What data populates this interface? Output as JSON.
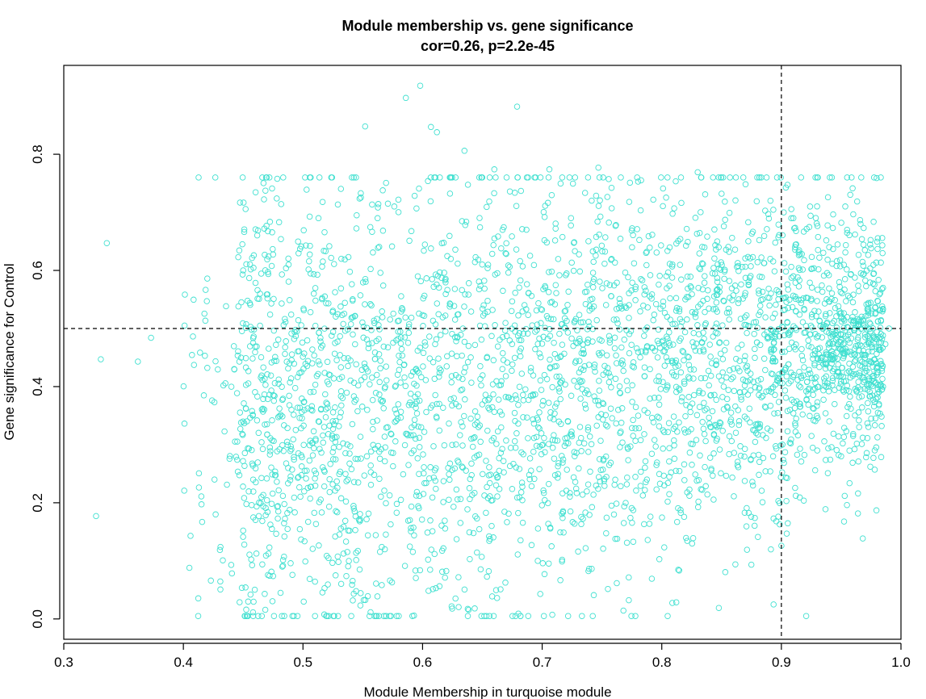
{
  "chart_data": {
    "type": "scatter",
    "title": "Module membership vs. gene significance",
    "subtitle": "cor=0.26, p=2.2e-45",
    "xlabel": "Module Membership in turquoise module",
    "ylabel": "Gene significance for Control",
    "xlim": [
      0.3,
      1.0
    ],
    "ylim": [
      -0.035,
      0.953
    ],
    "x_ticks": [
      "0.3",
      "0.4",
      "0.5",
      "0.6",
      "0.7",
      "0.8",
      "0.9",
      "1.0"
    ],
    "y_ticks": [
      "0.0",
      "0.2",
      "0.4",
      "0.6",
      "0.8"
    ],
    "grid": false,
    "legend": "none",
    "point_color": "#40E0D0",
    "point_shape": "open-circle",
    "reference_lines": {
      "vertical_x": 0.9,
      "horizontal_y": 0.5,
      "style": "dashed"
    },
    "n_points_approx": 3400,
    "highlighted_points": [
      [
        0.327,
        0.177
      ],
      [
        0.331,
        0.447
      ],
      [
        0.336,
        0.647
      ],
      [
        0.362,
        0.443
      ],
      [
        0.373,
        0.484
      ],
      [
        0.401,
        0.505
      ],
      [
        0.405,
        0.088
      ],
      [
        0.406,
        0.143
      ],
      [
        0.415,
        0.211
      ],
      [
        0.418,
        0.453
      ],
      [
        0.42,
        0.586
      ],
      [
        0.423,
        0.066
      ],
      [
        0.426,
        0.24
      ],
      [
        0.427,
        0.18
      ],
      [
        0.431,
        0.124
      ],
      [
        0.44,
        0.093
      ],
      [
        0.445,
        0.274
      ],
      [
        0.446,
        0.538
      ],
      [
        0.45,
        0.152
      ],
      [
        0.45,
        0.6
      ],
      [
        0.458,
        0.35
      ],
      [
        0.466,
        0.094
      ],
      [
        0.468,
        0.627
      ],
      [
        0.474,
        0.155
      ],
      [
        0.48,
        0.683
      ],
      [
        0.488,
        0.61
      ],
      [
        0.502,
        0.099
      ],
      [
        0.513,
        0.69
      ],
      [
        0.552,
        0.848
      ],
      [
        0.571,
        0.715
      ],
      [
        0.586,
        0.897
      ],
      [
        0.597,
        0.741
      ],
      [
        0.598,
        0.918
      ],
      [
        0.607,
        0.847
      ],
      [
        0.612,
        0.838
      ],
      [
        0.635,
        0.806
      ],
      [
        0.66,
        0.774
      ],
      [
        0.673,
        0.736
      ],
      [
        0.679,
        0.882
      ],
      [
        0.706,
        0.774
      ],
      [
        0.747,
        0.777
      ],
      [
        0.83,
        0.769
      ],
      [
        0.85,
        0.732
      ],
      [
        0.889,
        0.697
      ],
      [
        0.939,
        0.726
      ],
      [
        0.955,
        0.67
      ],
      [
        0.987,
        0.473
      ],
      [
        0.985,
        0.57
      ],
      [
        0.985,
        0.4
      ],
      [
        0.99,
        0.5
      ],
      [
        0.96,
        0.315
      ],
      [
        0.968,
        0.312
      ],
      [
        0.93,
        0.29
      ],
      [
        0.95,
        0.28
      ],
      [
        0.902,
        0.7
      ],
      [
        0.91,
        0.69
      ],
      [
        0.924,
        0.71
      ],
      [
        0.905,
        0.51
      ],
      [
        0.97,
        0.49
      ],
      [
        0.94,
        0.64
      ]
    ]
  }
}
